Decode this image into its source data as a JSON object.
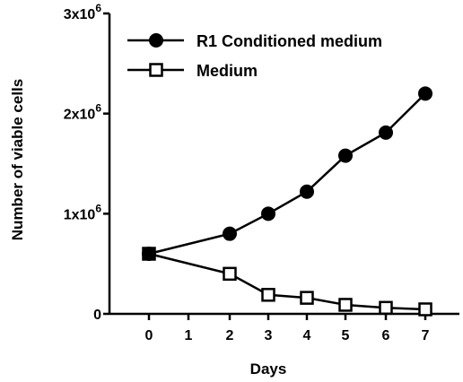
{
  "chart_data": {
    "type": "line",
    "xlabel": "Days",
    "ylabel": "Number of viable cells",
    "x_ticks": [
      "0",
      "1",
      "2",
      "3",
      "4",
      "5",
      "6",
      "7"
    ],
    "y_ticks": [
      {
        "value": 0,
        "mantissa": "0",
        "exponent": ""
      },
      {
        "value": 1000000,
        "mantissa": "1x10",
        "exponent": "6"
      },
      {
        "value": 2000000,
        "mantissa": "2x10",
        "exponent": "6"
      },
      {
        "value": 3000000,
        "mantissa": "3x10",
        "exponent": "6"
      }
    ],
    "ylim": [
      0,
      3000000
    ],
    "grid": false,
    "legend_position": "top-left",
    "series": [
      {
        "name": "R1 Conditioned medium",
        "marker": "filled-circle",
        "color": "#000000",
        "x": [
          "0",
          "2",
          "3",
          "4",
          "5",
          "6",
          "7"
        ],
        "values": [
          600000,
          800000,
          1000000,
          1220000,
          1580000,
          1810000,
          2200000
        ]
      },
      {
        "name": "Medium",
        "marker": "open-square",
        "color": "#000000",
        "x": [
          "0",
          "2",
          "3",
          "4",
          "5",
          "6",
          "7"
        ],
        "values": [
          600000,
          400000,
          190000,
          160000,
          90000,
          60000,
          45000
        ]
      }
    ]
  }
}
